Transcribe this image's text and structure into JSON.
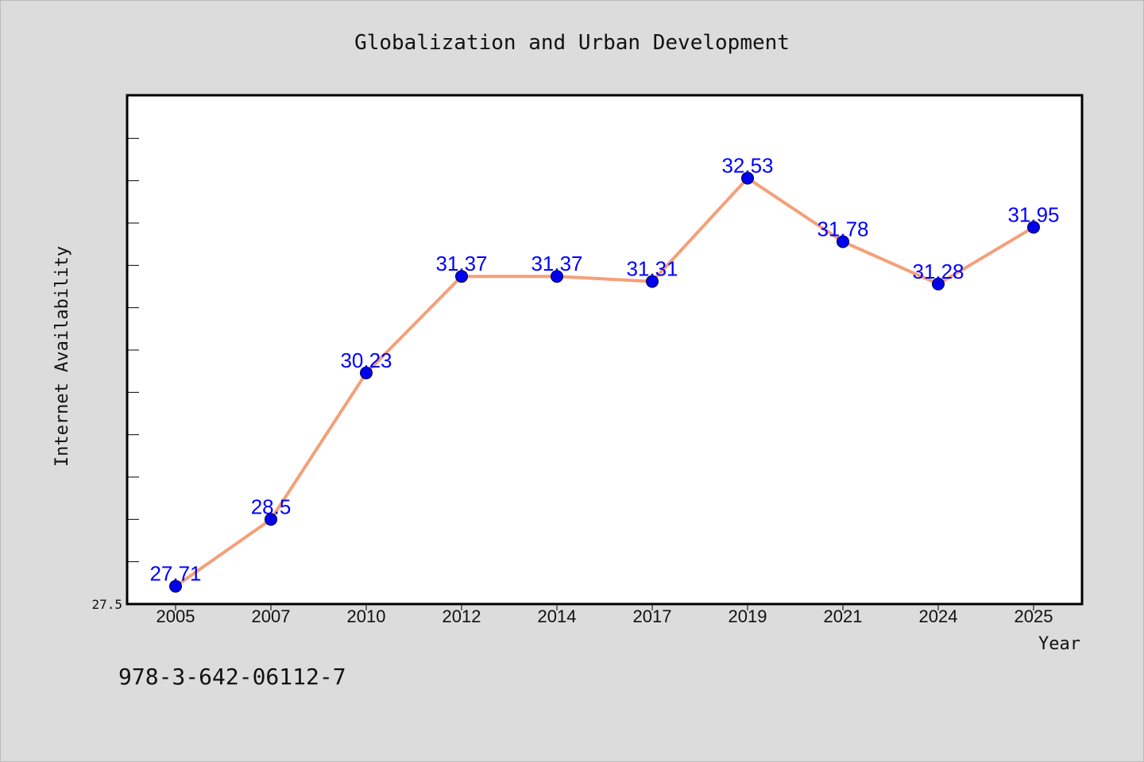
{
  "chart_data": {
    "type": "line",
    "title": "Globalization and Urban Development",
    "xlabel": "Year",
    "ylabel": "Internet Availability",
    "categories": [
      "2005",
      "2007",
      "2010",
      "2012",
      "2014",
      "2017",
      "2019",
      "2021",
      "2024",
      "2025"
    ],
    "series": [
      {
        "values": [
          27.71,
          28.5,
          30.23,
          31.37,
          31.37,
          31.31,
          32.53,
          31.78,
          31.28,
          31.95
        ],
        "labels": [
          "27.71",
          "28.5",
          "30.23",
          "31.37",
          "31.37",
          "31.31",
          "32.53",
          "31.78",
          "31.28",
          "31.95"
        ]
      }
    ],
    "ylim": [
      27.5,
      33.5
    ],
    "yticks_labeled": [
      "27.5"
    ],
    "grid": false,
    "legend": "none",
    "colors": {
      "line": "#f4a07a",
      "marker": "#0000ee",
      "data_label": "#0000ff",
      "background": "#dcdcdc",
      "plot_background": "#ffffff"
    }
  },
  "footer": {
    "isbn": "978-3-642-06112-7"
  }
}
